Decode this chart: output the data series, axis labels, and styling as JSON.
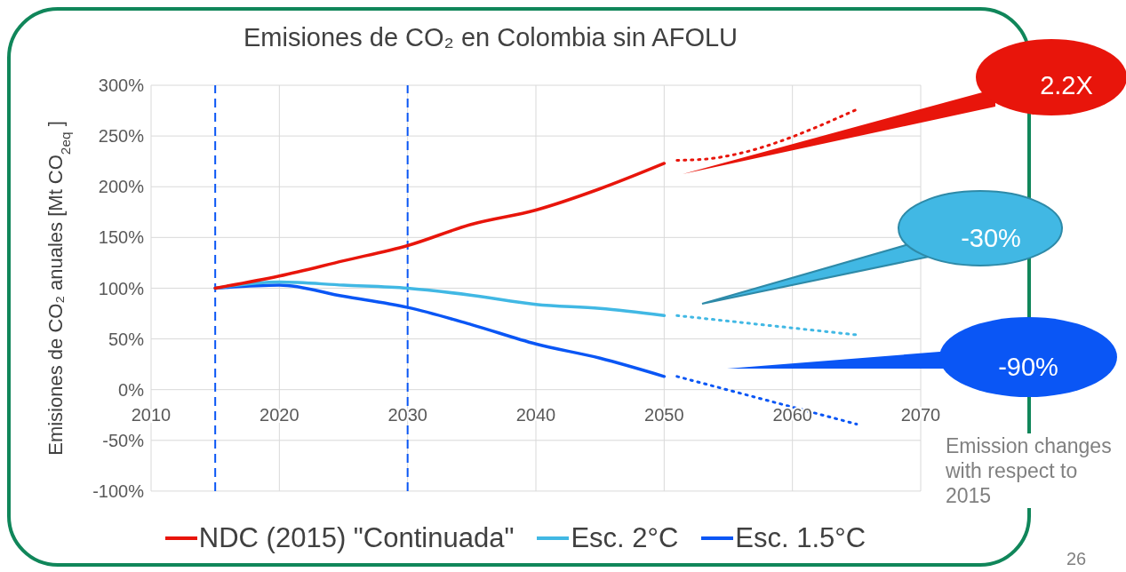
{
  "chart_data": {
    "type": "line",
    "title": "Emisiones de CO₂ en Colombia sin AFOLU",
    "ylabel": "Emisiones de CO₂ anuales  [Mt CO$_{2eq}$]",
    "series": [
      {
        "name": "NDC (2015) \"Continuada\"",
        "color": "#e8150b",
        "x": [
          2015,
          2020,
          2025,
          2030,
          2035,
          2040,
          2045,
          2050
        ],
        "values": [
          100,
          112,
          127,
          142,
          163,
          177,
          198,
          223
        ]
      },
      {
        "name": "Esc. 2°C",
        "color": "#41b8e4",
        "x": [
          2015,
          2020,
          2025,
          2030,
          2035,
          2040,
          2045,
          2050
        ],
        "values": [
          100,
          106,
          103,
          100,
          93,
          84,
          80,
          73
        ]
      },
      {
        "name": "Esc. 1.5°C",
        "color": "#0a56f5",
        "x": [
          2015,
          2020,
          2025,
          2030,
          2035,
          2040,
          2045,
          2050
        ],
        "values": [
          100,
          103,
          92,
          81,
          64,
          45,
          31,
          13
        ]
      },
      {
        "color": "#e8150b",
        "line_style": "dotted",
        "x": [
          2051,
          2053,
          2065
        ],
        "values": [
          226,
          227,
          276
        ]
      },
      {
        "color": "#41b8e4",
        "line_style": "dotted",
        "x": [
          2051,
          2065
        ],
        "values": [
          73,
          54
        ]
      },
      {
        "color": "#0a56f5",
        "line_style": "dotted",
        "x": [
          2051,
          2065
        ],
        "values": [
          13,
          -34
        ]
      }
    ],
    "xlim": [
      2010,
      2070
    ],
    "xticks": [
      2010,
      2020,
      2030,
      2040,
      2050,
      2060,
      2070
    ],
    "ylim": [
      -100,
      300
    ],
    "yticks": [
      {
        "value": -100,
        "label": "-100%"
      },
      {
        "value": -50,
        "label": "-50%"
      },
      {
        "value": 0,
        "label": "0%"
      },
      {
        "value": 50,
        "label": "50%"
      },
      {
        "value": 100,
        "label": "100%"
      },
      {
        "value": 150,
        "label": "150%"
      },
      {
        "value": 200,
        "label": "200%"
      },
      {
        "value": 250,
        "label": "250%"
      },
      {
        "value": 300,
        "label": "300%"
      }
    ],
    "ref_lines": [
      {
        "axis": "x",
        "value": 2015,
        "color": "#0a56f5",
        "line_style": "dashed"
      },
      {
        "axis": "x",
        "value": 2030,
        "color": "#0a56f5",
        "line_style": "dashed"
      }
    ],
    "annotations": [
      "2.2X",
      "-30%",
      "-90%",
      "Emission changes with respect to 2015",
      "26"
    ],
    "grid": true,
    "legend": "bottom",
    "marker": "none",
    "line_style": "solid"
  }
}
